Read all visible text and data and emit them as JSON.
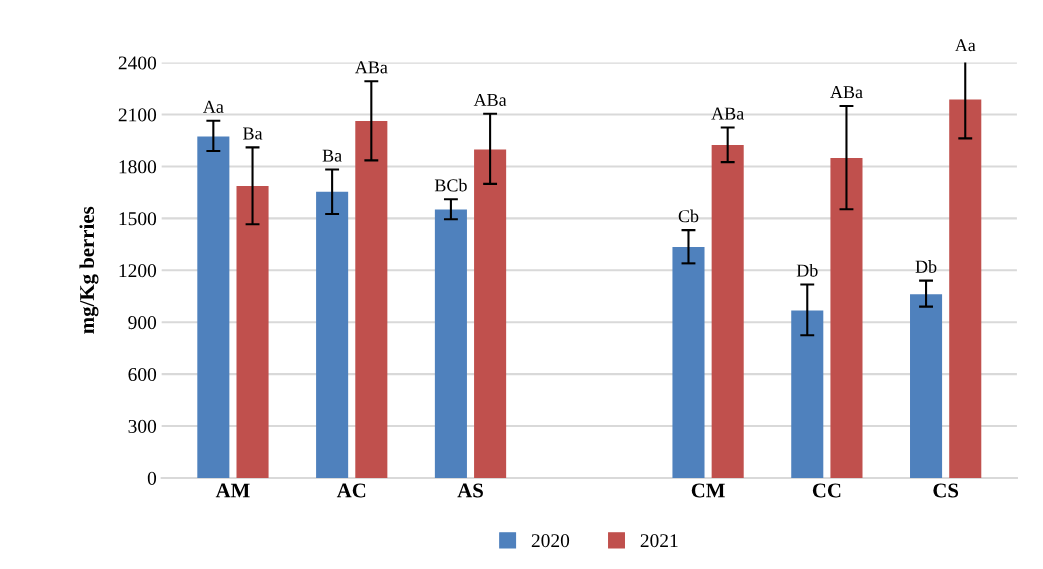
{
  "chart_data": {
    "type": "bar",
    "ylabel": "mg/Kg berries",
    "categories": [
      "AM",
      "AC",
      "AS",
      null,
      "CM",
      "CC",
      "CS"
    ],
    "series": [
      {
        "name": "2020",
        "color": "#4f81bd",
        "values": [
          1973,
          1653,
          1551,
          null,
          1335,
          968,
          1062
        ],
        "errors": [
          [
            1889,
            2064
          ],
          [
            1525,
            1782
          ],
          [
            1495,
            1610
          ],
          null,
          [
            1240,
            1432
          ],
          [
            825,
            1118
          ],
          [
            990,
            1140
          ]
        ]
      },
      {
        "name": "2021",
        "color": "#c0504d",
        "values": [
          1687,
          2062,
          1898,
          null,
          1924,
          1849,
          2187
        ],
        "errors": [
          [
            1466,
            1910
          ],
          [
            1835,
            2292
          ],
          [
            1699,
            2104
          ],
          null,
          [
            1825,
            2025
          ],
          [
            1553,
            2149
          ],
          [
            1962,
            2420
          ]
        ]
      }
    ],
    "annotations": [
      "Aa",
      "Ba",
      "Ba",
      "ABa",
      "BCb",
      "ABa",
      "Cb",
      "ABa",
      "Db",
      "ABa",
      "Db",
      "Aa"
    ],
    "ylim": [
      0,
      2400
    ],
    "yticks": [
      0,
      300,
      600,
      900,
      1200,
      1500,
      1800,
      2100,
      2400
    ],
    "grid": "y",
    "legend": "bottom"
  }
}
